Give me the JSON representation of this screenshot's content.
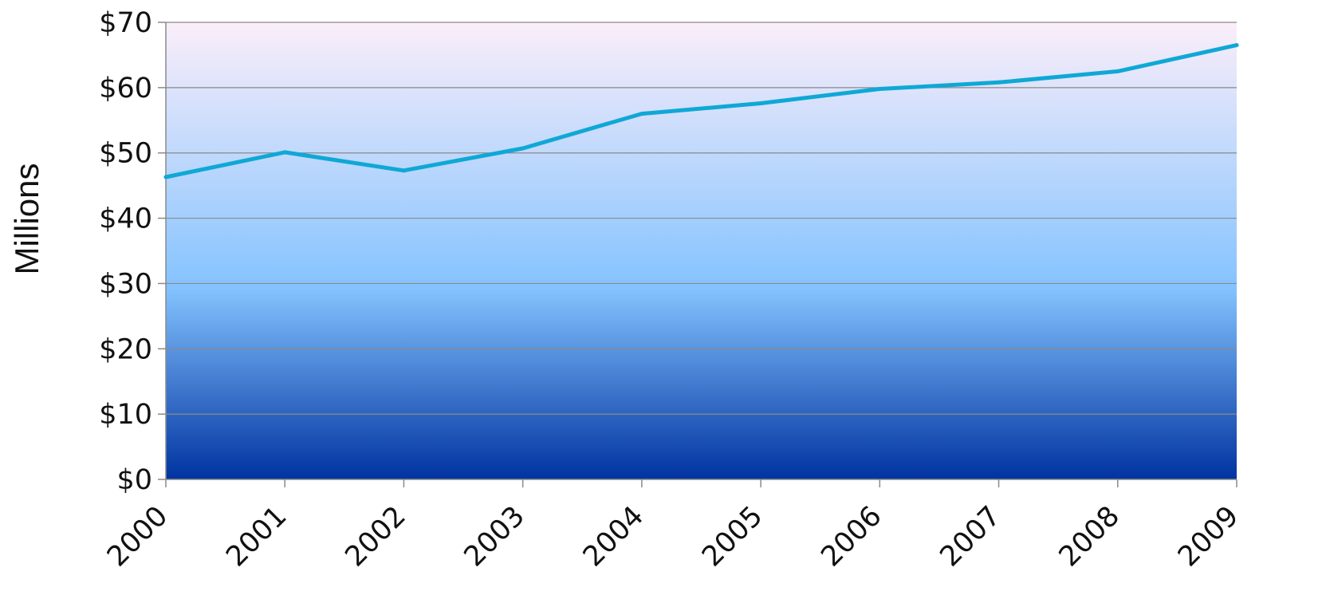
{
  "chart_data": {
    "type": "line",
    "title": "",
    "xlabel": "",
    "ylabel": "Millions",
    "x": [
      "2000",
      "2001",
      "2002",
      "2003",
      "2004",
      "2005",
      "2006",
      "2007",
      "2008",
      "2009"
    ],
    "series": [
      {
        "values": [
          46.3,
          50.1,
          47.3,
          50.7,
          56.0,
          57.6,
          59.8,
          60.8,
          62.5,
          66.5
        ],
        "color": "#0fa8d6"
      }
    ],
    "ylim": [
      0,
      70
    ],
    "yticks": [
      0,
      10,
      20,
      30,
      40,
      50,
      60,
      70
    ],
    "ytick_labels": [
      "$0",
      "$10",
      "$20",
      "$30",
      "$40",
      "$50",
      "$60",
      "$70"
    ],
    "grid": true,
    "legend": "none",
    "background_gradient": [
      "#fbeefa",
      "#84c3ff",
      "#0033a0"
    ]
  }
}
